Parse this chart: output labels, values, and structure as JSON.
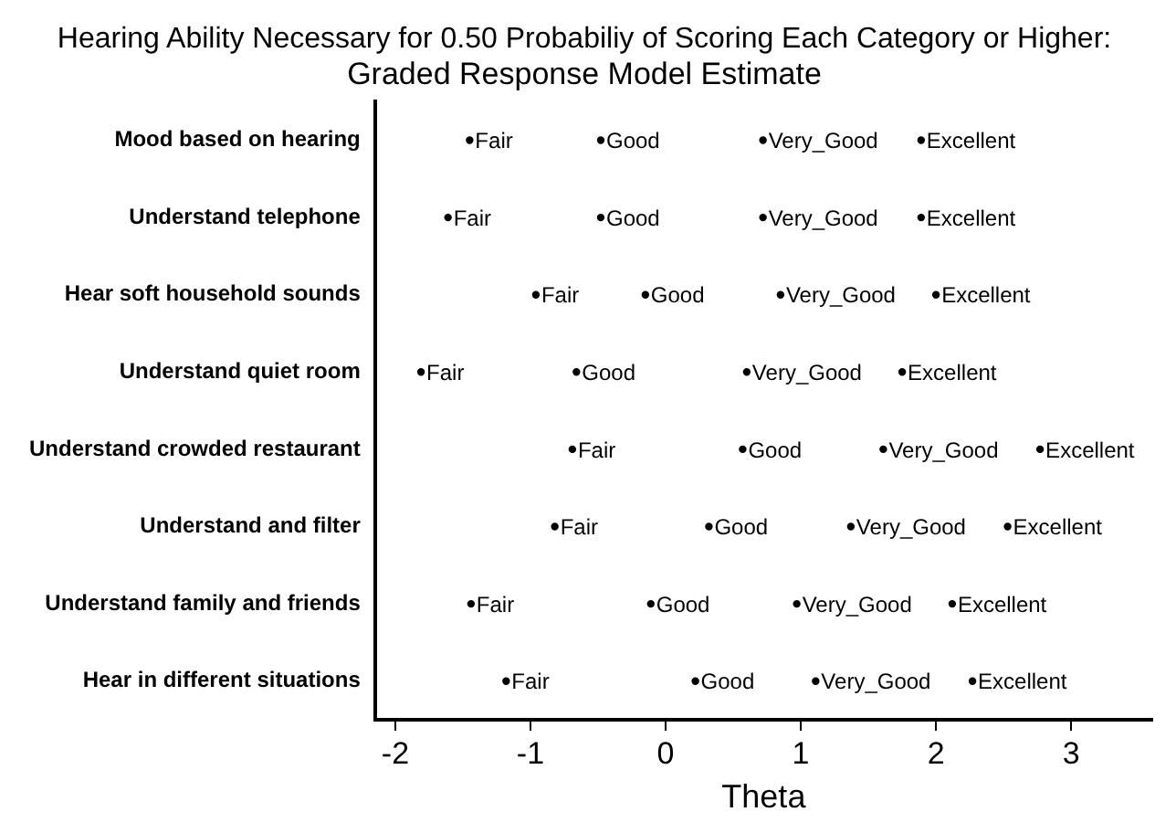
{
  "chart_data": {
    "type": "scatter",
    "title": "Hearing Ability Necessary for 0.50 Probabiliy of Scoring Each Category or Higher:",
    "subtitle": "Graded Response Model Estimate",
    "xlabel": "Theta",
    "orientation": "horizontal",
    "categories": [
      "Mood based on hearing",
      "Understand telephone",
      "Hear soft household sounds",
      "Understand quiet room",
      "Understand crowded restaurant",
      "Understand and filter",
      "Understand family and friends",
      "Hear in different situations"
    ],
    "series": [
      {
        "name": "Fair",
        "color": "#000000",
        "values": [
          -1.45,
          -1.61,
          -0.96,
          -1.81,
          -0.69,
          -0.82,
          -1.44,
          -1.18
        ]
      },
      {
        "name": "Good",
        "color": "#000000",
        "values": [
          -0.48,
          -0.48,
          -0.15,
          -0.66,
          0.57,
          0.32,
          -0.11,
          0.22
        ]
      },
      {
        "name": "Very_Good",
        "color": "#000000",
        "values": [
          0.72,
          0.72,
          0.85,
          0.6,
          1.61,
          1.37,
          0.97,
          1.11
        ]
      },
      {
        "name": "Excellent",
        "color": "#000000",
        "values": [
          1.89,
          1.89,
          2.0,
          1.75,
          2.77,
          2.53,
          2.12,
          2.27
        ]
      }
    ],
    "xlim": [
      -2.15,
      3.6
    ],
    "xticks": [
      -2,
      -1,
      0,
      1,
      2,
      3
    ],
    "grid": false,
    "legend": false,
    "marker": "circle"
  }
}
